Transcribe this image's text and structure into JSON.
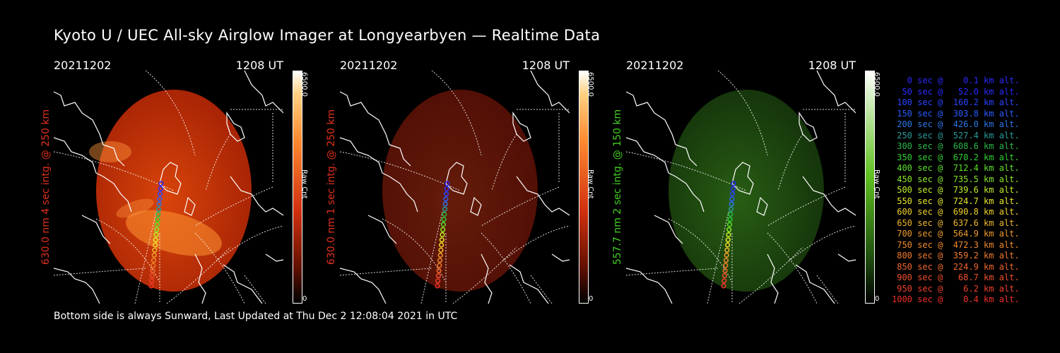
{
  "title": "Kyoto U / UEC All-sky Airglow Imager at Longyearbyen — Realtime Data",
  "footer": "Bottom side is always Sunward, Last Updated at Thu Dec  2 12:08:04 2021 in UTC",
  "panels": [
    {
      "date": "20211202",
      "time": "1208 UT",
      "label": "630.0 nm 4 sec intg. @ 250 km",
      "label_color": "#e0301e",
      "colorbar_max": "6500.0",
      "colorbar_min": "0",
      "colorbar_unit": "Raw Cnt",
      "colormap": "red",
      "intensity": 0.85
    },
    {
      "date": "20211202",
      "time": "1208 UT",
      "label": "630.0 nm 1 sec intg. @ 250 km",
      "label_color": "#e0301e",
      "colorbar_max": "6500.0",
      "colorbar_min": "0",
      "colorbar_unit": "Raw Cnt",
      "colormap": "red",
      "intensity": 0.35
    },
    {
      "date": "20211202",
      "time": "1208 UT",
      "label": "557.7 nm 2 sec intg. @ 150 km",
      "label_color": "#44d022",
      "colorbar_max": "6500.0",
      "colorbar_min": "0",
      "colorbar_unit": "Raw Cnt",
      "colormap": "green",
      "intensity": 0.25
    }
  ],
  "trajectory_legend": [
    {
      "text": "   0 sec @    0.1 km alt.",
      "color": "#2a2aff"
    },
    {
      "text": "  50 sec @   52.0 km alt.",
      "color": "#2a2aff"
    },
    {
      "text": " 100 sec @  160.2 km alt.",
      "color": "#2a44ff"
    },
    {
      "text": " 150 sec @  303.8 km alt.",
      "color": "#2a5cff"
    },
    {
      "text": " 200 sec @  426.0 km alt.",
      "color": "#2a78e8"
    },
    {
      "text": " 250 sec @  527.4 km alt.",
      "color": "#2a9a9a"
    },
    {
      "text": " 300 sec @  608.6 km alt.",
      "color": "#2ab84a"
    },
    {
      "text": " 350 sec @  670.2 km alt.",
      "color": "#30d030"
    },
    {
      "text": " 400 sec @  712.4 km alt.",
      "color": "#5ae02a"
    },
    {
      "text": " 450 sec @  735.5 km alt.",
      "color": "#8ae82a"
    },
    {
      "text": " 500 sec @  739.6 km alt.",
      "color": "#c0ee2a"
    },
    {
      "text": " 550 sec @  724.7 km alt.",
      "color": "#e8e82a"
    },
    {
      "text": " 600 sec @  690.8 km alt.",
      "color": "#f0d22a"
    },
    {
      "text": " 650 sec @  637.6 km alt.",
      "color": "#f0b82a"
    },
    {
      "text": " 700 sec @  564.9 km alt.",
      "color": "#f09a2a"
    },
    {
      "text": " 750 sec @  472.3 km alt.",
      "color": "#f08a2a"
    },
    {
      "text": " 800 sec @  359.2 km alt.",
      "color": "#f07a2a"
    },
    {
      "text": " 850 sec @  224.9 km alt.",
      "color": "#f0682a"
    },
    {
      "text": " 900 sec @   68.7 km alt.",
      "color": "#f0502a"
    },
    {
      "text": " 950 sec @    6.2 km alt.",
      "color": "#f0402a"
    },
    {
      "text": "1000 sec @    0.4 km alt.",
      "color": "#f0302a"
    }
  ]
}
